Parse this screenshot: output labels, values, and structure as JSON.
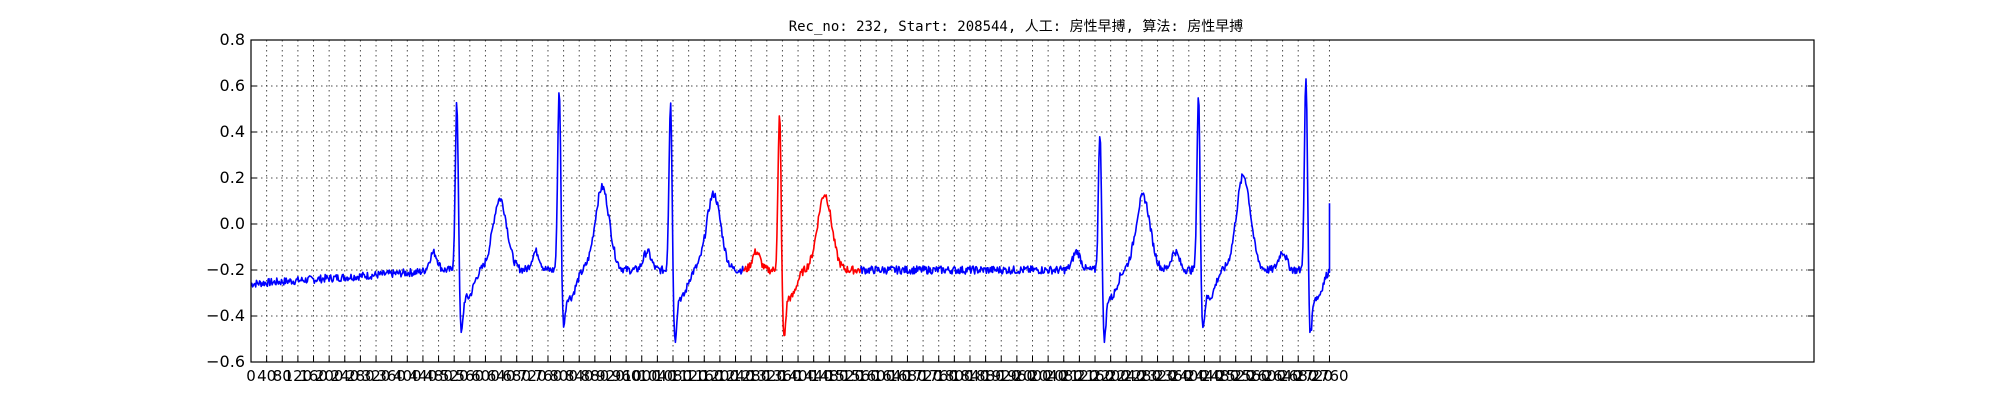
{
  "chart_data": {
    "type": "line",
    "title": "Rec_no: 232, Start: 208544, 人工: 房性早搏, 算法: 房性早搏",
    "xlabel": "",
    "ylabel": "",
    "xlim": [
      0,
      4000
    ],
    "ylim": [
      -0.6,
      0.8
    ],
    "yticks": [
      -0.6,
      -0.4,
      -0.2,
      0.0,
      0.2,
      0.4,
      0.6,
      0.8
    ],
    "ytick_labels": [
      "−0.6",
      "−0.4",
      "−0.2",
      "0.0",
      "0.2",
      "0.4",
      "0.6",
      "0.8"
    ],
    "xtick_step": 40,
    "xtick_max": 2760,
    "grid": true,
    "colors": {
      "normal": "#0000ff",
      "highlight": "#ff0000"
    },
    "highlight_range": [
      1260,
      1560
    ],
    "signal_end": 2760,
    "beats": [
      {
        "x": 527,
        "peak": 0.57,
        "trough": -0.54,
        "twave": 0.11,
        "t_offset": 110
      },
      {
        "x": 789,
        "peak": 0.63,
        "trough": -0.5,
        "twave": 0.16,
        "t_offset": 110
      },
      {
        "x": 1074,
        "peak": 0.59,
        "trough": -0.57,
        "twave": 0.13,
        "t_offset": 110
      },
      {
        "x": 1353,
        "peak": 0.52,
        "trough": -0.56,
        "twave": 0.13,
        "t_offset": 115
      },
      {
        "x": 2173,
        "peak": 0.45,
        "trough": -0.56,
        "twave": 0.12,
        "t_offset": 110
      },
      {
        "x": 2425,
        "peak": 0.6,
        "trough": -0.51,
        "twave": 0.21,
        "t_offset": 115
      },
      {
        "x": 2700,
        "peak": 0.68,
        "trough": -0.54,
        "twave": 0.17,
        "t_offset": 110
      }
    ],
    "baseline": -0.2
  }
}
